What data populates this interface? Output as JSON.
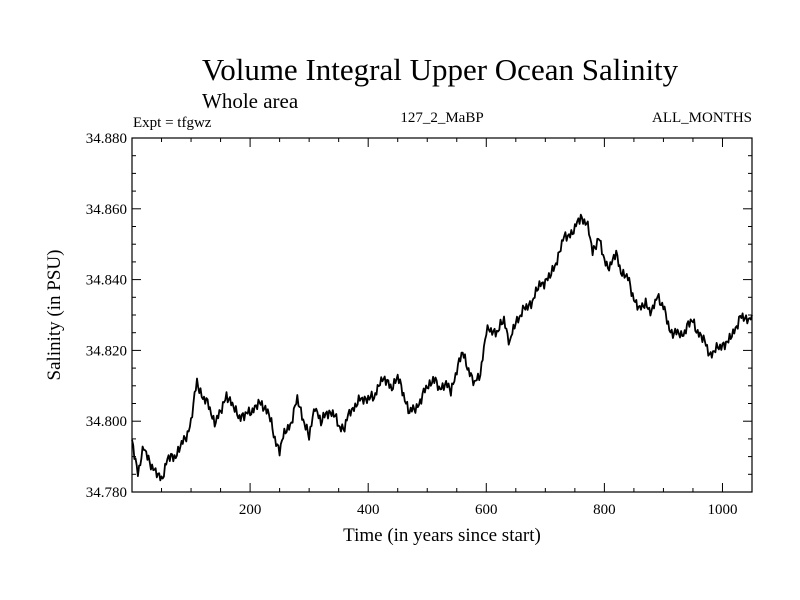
{
  "colors": {
    "background": "#ffffff",
    "line": "#000000",
    "axis": "#000000"
  },
  "header": {
    "title": "Volume Integral Upper Ocean Salinity",
    "region": "Whole area",
    "experiment": "Expt = tfgwz",
    "run_id": "127_2_MaBP",
    "months": "ALL_MONTHS"
  },
  "chart_data": {
    "type": "line",
    "title": "Volume Integral Upper Ocean Salinity",
    "xlabel": "Time (in years since start)",
    "ylabel": "Salinity (in PSU)",
    "xlim": [
      0,
      1050
    ],
    "ylim": [
      34.78,
      34.88
    ],
    "x_ticks": [
      200,
      400,
      600,
      800,
      1000
    ],
    "x_tick_labels": [
      "200",
      "400",
      "600",
      "800",
      "1000"
    ],
    "y_ticks": [
      34.78,
      34.8,
      34.82,
      34.84,
      34.86,
      34.88
    ],
    "y_tick_labels": [
      "34.780",
      "34.800",
      "34.820",
      "34.840",
      "34.860",
      "34.880"
    ],
    "grid": false,
    "series": [
      {
        "name": "Volume integral upper ocean salinity",
        "x": [
          0,
          10,
          20,
          30,
          40,
          50,
          60,
          70,
          80,
          90,
          100,
          110,
          120,
          130,
          140,
          150,
          160,
          170,
          180,
          190,
          200,
          210,
          220,
          230,
          240,
          250,
          260,
          270,
          280,
          290,
          300,
          310,
          320,
          330,
          340,
          350,
          360,
          370,
          380,
          390,
          400,
          410,
          420,
          430,
          440,
          450,
          460,
          470,
          480,
          490,
          500,
          510,
          520,
          530,
          540,
          550,
          560,
          570,
          580,
          590,
          600,
          610,
          620,
          630,
          640,
          650,
          660,
          670,
          680,
          690,
          700,
          710,
          720,
          730,
          740,
          750,
          760,
          770,
          780,
          790,
          800,
          810,
          820,
          830,
          840,
          850,
          860,
          870,
          880,
          890,
          900,
          910,
          920,
          930,
          940,
          950,
          960,
          970,
          980,
          990,
          1000,
          1010,
          1020,
          1030,
          1040,
          1050
        ],
        "values": [
          34.794,
          34.786,
          34.792,
          34.789,
          34.785,
          34.784,
          34.789,
          34.79,
          34.792,
          34.795,
          34.8,
          34.811,
          34.807,
          34.804,
          34.8,
          34.802,
          34.808,
          34.804,
          34.802,
          34.801,
          34.803,
          34.804,
          34.805,
          34.803,
          34.796,
          34.792,
          34.797,
          34.8,
          34.806,
          34.801,
          34.795,
          34.805,
          34.799,
          34.803,
          34.802,
          34.799,
          34.798,
          34.803,
          34.805,
          34.806,
          34.807,
          34.806,
          34.812,
          34.811,
          34.81,
          34.812,
          34.808,
          34.802,
          34.804,
          34.806,
          34.81,
          34.812,
          34.809,
          34.811,
          34.808,
          34.815,
          34.819,
          34.815,
          34.81,
          34.814,
          34.825,
          34.826,
          34.825,
          34.829,
          34.822,
          34.828,
          34.831,
          34.832,
          34.835,
          34.838,
          34.84,
          34.841,
          34.846,
          34.851,
          34.853,
          34.854,
          34.858,
          34.856,
          34.848,
          34.852,
          34.845,
          34.844,
          34.847,
          34.842,
          34.84,
          34.835,
          34.831,
          34.834,
          34.83,
          34.836,
          34.832,
          34.826,
          34.825,
          34.824,
          34.827,
          34.828,
          34.825,
          34.822,
          34.819,
          34.82,
          34.822,
          34.822,
          34.826,
          34.829,
          34.829,
          34.83
        ]
      }
    ]
  }
}
